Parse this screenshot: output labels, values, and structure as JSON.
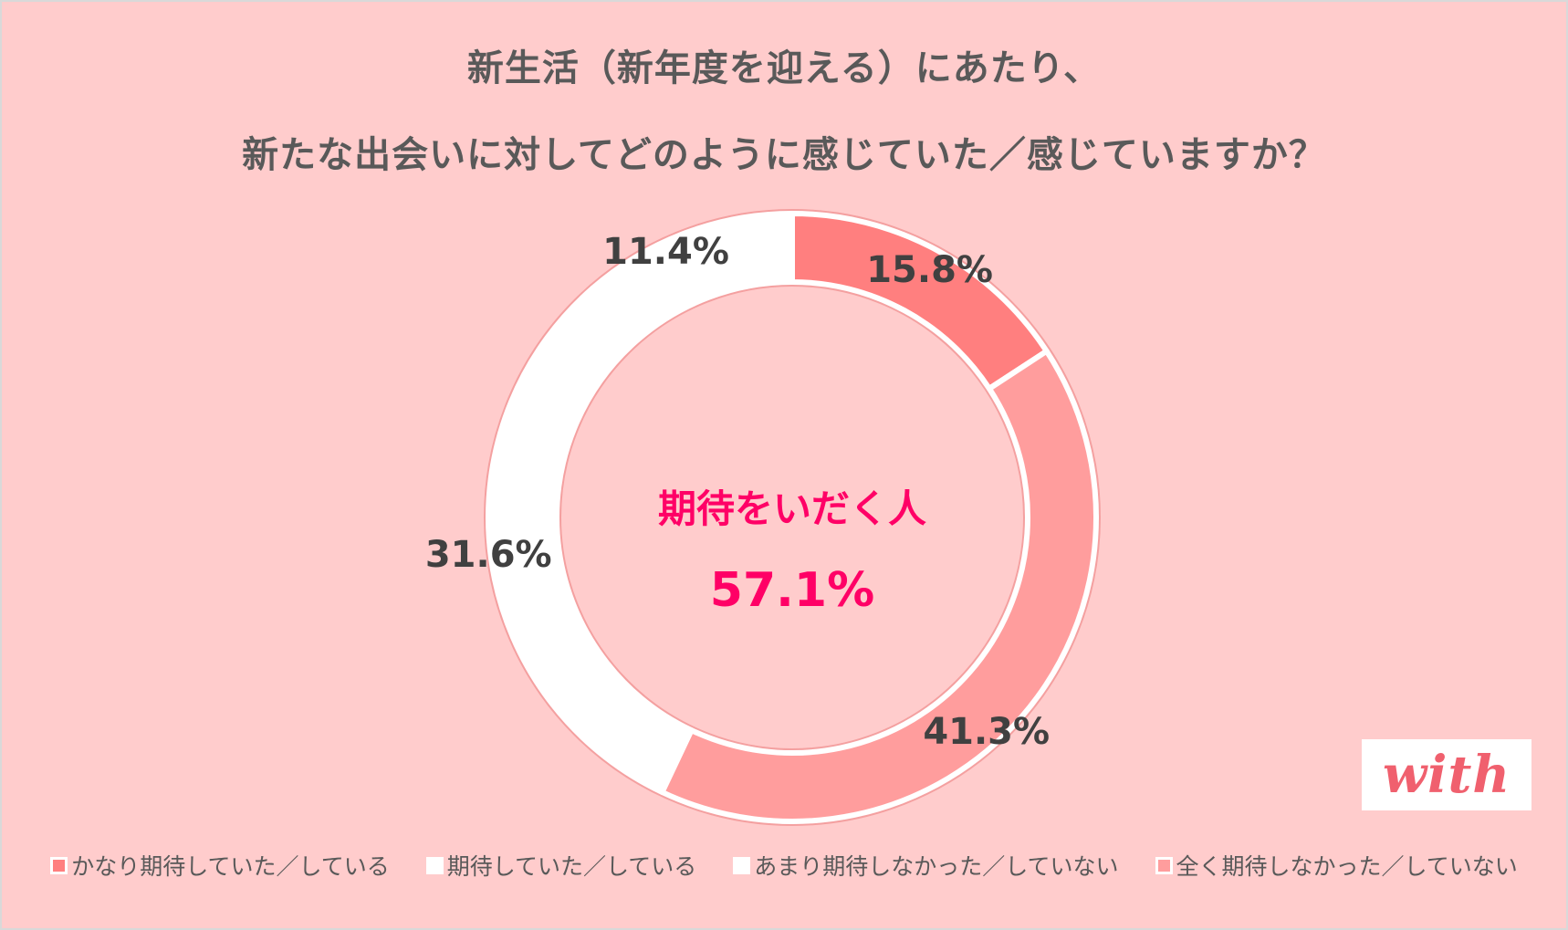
{
  "title": {
    "line1": "新生活（新年度を迎える）にあたり、",
    "line2": "新たな出会いに対してどのように感じていた／感じていますか？"
  },
  "center": {
    "label": "期待をいだく人",
    "value": "57.1%"
  },
  "logo": {
    "text": "with"
  },
  "colors": {
    "background": "#ffcccc",
    "outline": "#f4a0a0",
    "accent": "#ff0066",
    "text": "#595959"
  },
  "chart_data": {
    "type": "pie",
    "variant": "donut",
    "categories": [
      "かなり期待していた／している",
      "期待していた／している",
      "あまり期待しなかった／していない",
      "全く期待しなかった／していない"
    ],
    "values": [
      15.8,
      41.3,
      31.6,
      11.4
    ],
    "labels": [
      "15.8%",
      "41.3%",
      "31.6%",
      "11.4%"
    ],
    "colors": [
      "#ff7f7f",
      "#ff9d9d",
      "#ffffff",
      "#ffffff"
    ],
    "legend_position": "bottom"
  }
}
